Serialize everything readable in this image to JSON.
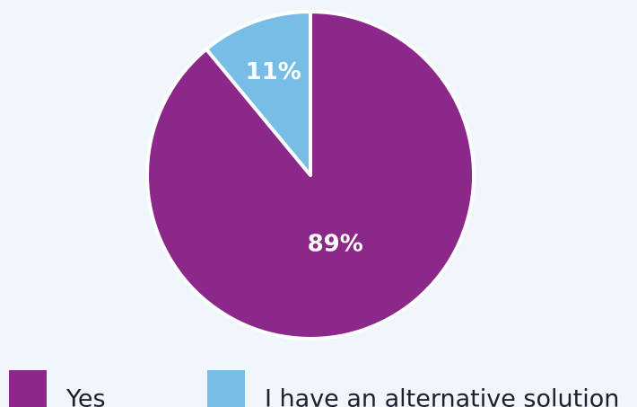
{
  "chart_data": {
    "type": "pie",
    "title": "",
    "slices": [
      {
        "label": "Yes",
        "value": 89,
        "display": "89%",
        "color": "#8c2889"
      },
      {
        "label": "I have an alternative solution",
        "value": 11,
        "display": "11%",
        "color": "#78bde6"
      }
    ],
    "start_angle_deg": 0,
    "direction": "clockwise",
    "legend_position": "bottom",
    "slice_border_color": "#ffffff"
  }
}
